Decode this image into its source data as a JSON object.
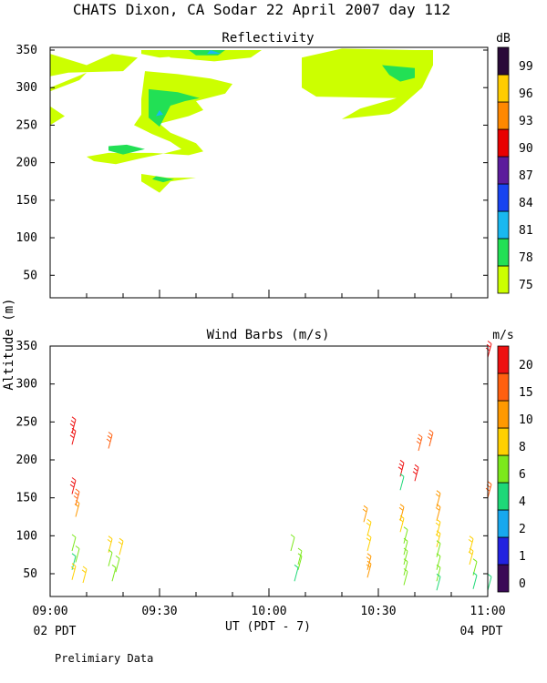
{
  "header": {
    "title": "CHATS Dixon, CA  Sodar  22 April 2007  day 112",
    "footnote": "Prelimiary Data",
    "ylabel": "Altitude (m)",
    "xlabel": "UT  (PDT - 7)",
    "time_left": "02 PDT",
    "time_right": "04 PDT"
  },
  "chart_data": [
    {
      "type": "heatmap",
      "title": "Reflectivity",
      "x": {
        "ticks": [
          "09:00",
          "09:30",
          "10:00",
          "10:30",
          "11:00"
        ],
        "range": [
          "09:00",
          "11:00"
        ]
      },
      "y": {
        "ticks": [
          50,
          100,
          150,
          200,
          250,
          300,
          350
        ],
        "range": [
          20,
          350
        ]
      },
      "colorbar": {
        "unit": "dB",
        "levels": [
          75,
          78,
          81,
          84,
          87,
          90,
          93,
          96,
          99
        ],
        "colors": [
          "#ccff00",
          "#22e055",
          "#19b8f0",
          "#1844f0",
          "#5c1c9c",
          "#e80000",
          "#ff8800",
          "#ffcc00",
          "#2a0a38"
        ]
      },
      "regions": [
        {
          "level": 75,
          "points": [
            [
              "09:00",
              345
            ],
            [
              "09:10",
              330
            ],
            [
              "09:17",
              345
            ],
            [
              "09:24",
              340
            ],
            [
              "09:20",
              322
            ],
            [
              "09:05",
              320
            ],
            [
              "09:00",
              315
            ]
          ]
        },
        {
          "level": 75,
          "points": [
            [
              "09:00",
              300
            ],
            [
              "09:10",
              320
            ],
            [
              "09:08",
              310
            ],
            [
              "09:00",
              295
            ]
          ]
        },
        {
          "level": 75,
          "points": [
            [
              "09:00",
              275
            ],
            [
              "09:04",
              262
            ],
            [
              "09:00",
              250
            ]
          ]
        },
        {
          "level": 75,
          "points": [
            [
              "09:25",
              350
            ],
            [
              "09:35",
              350
            ],
            [
              "09:35",
              342
            ],
            [
              "09:30",
              340
            ],
            [
              "09:25",
              345
            ]
          ]
        },
        {
          "level": 75,
          "points": [
            [
              "09:30",
              350
            ],
            [
              "09:58",
              350
            ],
            [
              "09:55",
              340
            ],
            [
              "09:45",
              335
            ],
            [
              "09:33",
              340
            ]
          ]
        },
        {
          "level": 75,
          "points": [
            [
              "09:26",
              322
            ],
            [
              "09:35",
              318
            ],
            [
              "09:44",
              312
            ],
            [
              "09:50",
              305
            ],
            [
              "09:48",
              292
            ],
            [
              "09:40",
              282
            ],
            [
              "09:42",
              270
            ],
            [
              "09:38",
              262
            ],
            [
              "09:30",
              252
            ],
            [
              "09:33",
              240
            ],
            [
              "09:40",
              226
            ],
            [
              "09:42",
              215
            ],
            [
              "09:38",
              210
            ],
            [
              "09:28",
              213
            ],
            [
              "09:16",
              213
            ],
            [
              "09:10",
              208
            ],
            [
              "09:12",
              202
            ],
            [
              "09:18",
              198
            ],
            [
              "09:25",
              206
            ],
            [
              "09:31",
              212
            ],
            [
              "09:36",
              218
            ],
            [
              "09:33",
              228
            ],
            [
              "09:28",
              238
            ],
            [
              "09:23",
              250
            ],
            [
              "09:25",
              264
            ],
            [
              "09:25",
              285
            ]
          ]
        },
        {
          "level": 75,
          "points": [
            [
              "09:25",
              185
            ],
            [
              "09:32",
              180
            ],
            [
              "09:40",
              180
            ],
            [
              "09:33",
              175
            ],
            [
              "09:30",
              160
            ],
            [
              "09:25",
              175
            ]
          ]
        },
        {
          "level": 75,
          "points": [
            [
              "10:09",
              340
            ],
            [
              "10:20",
              352
            ],
            [
              "10:40",
              350
            ],
            [
              "10:45",
              350
            ],
            [
              "10:45",
              330
            ],
            [
              "10:42",
              300
            ],
            [
              "10:35",
              270
            ],
            [
              "10:33",
              265
            ],
            [
              "10:20",
              258
            ],
            [
              "10:25",
              272
            ],
            [
              "10:35",
              286
            ],
            [
              "10:13",
              288
            ],
            [
              "10:09",
              300
            ]
          ]
        },
        {
          "level": 78,
          "points": [
            [
              "09:38",
              350
            ],
            [
              "09:48",
              350
            ],
            [
              "09:46",
              343
            ],
            [
              "09:40",
              343
            ]
          ]
        },
        {
          "level": 78,
          "points": [
            [
              "09:27",
              298
            ],
            [
              "09:35",
              294
            ],
            [
              "09:41",
              286
            ],
            [
              "09:37",
              282
            ],
            [
              "09:33",
              276
            ],
            [
              "09:30",
              248
            ],
            [
              "09:27",
              260
            ]
          ]
        },
        {
          "level": 78,
          "points": [
            [
              "09:16",
              222
            ],
            [
              "09:21",
              224
            ],
            [
              "09:26",
              218
            ],
            [
              "09:20",
              211
            ],
            [
              "09:16",
              216
            ]
          ]
        },
        {
          "level": 78,
          "points": [
            [
              "09:29",
              182
            ],
            [
              "09:34",
              178
            ],
            [
              "09:31",
              174
            ],
            [
              "09:28",
              178
            ]
          ]
        },
        {
          "level": 78,
          "points": [
            [
              "10:31",
              330
            ],
            [
              "10:40",
              326
            ],
            [
              "10:40",
              313
            ],
            [
              "10:36",
              308
            ],
            [
              "10:33",
              317
            ]
          ]
        },
        {
          "level": 81,
          "points": [
            [
              "09:44",
              350
            ],
            [
              "09:47",
              345
            ],
            [
              "09:43",
              345
            ]
          ]
        },
        {
          "level": 81,
          "points": [
            [
              "09:30",
              270
            ],
            [
              "09:31",
              264
            ],
            [
              "09:29",
              262
            ]
          ]
        }
      ]
    },
    {
      "type": "scatter",
      "title": "Wind Barbs (m/s)",
      "x": {
        "ticks": [
          "09:00",
          "09:30",
          "10:00",
          "10:30",
          "11:00"
        ],
        "range": [
          "09:00",
          "11:00"
        ]
      },
      "y": {
        "ticks": [
          50,
          100,
          150,
          200,
          250,
          300,
          350
        ],
        "range": [
          20,
          350
        ]
      },
      "colorbar": {
        "unit": "m/s",
        "levels": [
          0,
          1,
          2,
          4,
          6,
          8,
          10,
          15,
          20
        ],
        "colors": [
          "#3a0a56",
          "#2222e0",
          "#18a8ee",
          "#1ed878",
          "#7ce81c",
          "#ffd000",
          "#ff9900",
          "#ff6010",
          "#ee1111"
        ]
      },
      "barbs": [
        {
          "time": "09:06",
          "alt": 235,
          "level": 20
        },
        {
          "time": "09:06",
          "alt": 220,
          "level": 20
        },
        {
          "time": "09:06",
          "alt": 155,
          "level": 20
        },
        {
          "time": "09:07",
          "alt": 140,
          "level": 15
        },
        {
          "time": "09:07",
          "alt": 125,
          "level": 10
        },
        {
          "time": "09:06",
          "alt": 80,
          "level": 6
        },
        {
          "time": "09:07",
          "alt": 65,
          "level": 6
        },
        {
          "time": "09:06",
          "alt": 55,
          "level": 4
        },
        {
          "time": "09:06",
          "alt": 42,
          "level": 8
        },
        {
          "time": "09:09",
          "alt": 38,
          "level": 8
        },
        {
          "time": "09:16",
          "alt": 215,
          "level": 15
        },
        {
          "time": "09:16",
          "alt": 78,
          "level": 8
        },
        {
          "time": "09:19",
          "alt": 75,
          "level": 8
        },
        {
          "time": "09:16",
          "alt": 60,
          "level": 6
        },
        {
          "time": "09:18",
          "alt": 52,
          "level": 6
        },
        {
          "time": "09:17",
          "alt": 40,
          "level": 6
        },
        {
          "time": "10:06",
          "alt": 80,
          "level": 6
        },
        {
          "time": "10:08",
          "alt": 62,
          "level": 6
        },
        {
          "time": "10:08",
          "alt": 55,
          "level": 6
        },
        {
          "time": "10:07",
          "alt": 40,
          "level": 4
        },
        {
          "time": "10:26",
          "alt": 118,
          "level": 10
        },
        {
          "time": "10:27",
          "alt": 100,
          "level": 8
        },
        {
          "time": "10:27",
          "alt": 80,
          "level": 8
        },
        {
          "time": "10:27",
          "alt": 55,
          "level": 10
        },
        {
          "time": "10:27",
          "alt": 45,
          "level": 10
        },
        {
          "time": "10:36",
          "alt": 178,
          "level": 20
        },
        {
          "time": "10:40",
          "alt": 172,
          "level": 20
        },
        {
          "time": "10:36",
          "alt": 160,
          "level": 4
        },
        {
          "time": "10:36",
          "alt": 120,
          "level": 10
        },
        {
          "time": "10:36",
          "alt": 105,
          "level": 8
        },
        {
          "time": "10:37",
          "alt": 90,
          "level": 6
        },
        {
          "time": "10:37",
          "alt": 75,
          "level": 6
        },
        {
          "time": "10:37",
          "alt": 62,
          "level": 6
        },
        {
          "time": "10:37",
          "alt": 48,
          "level": 6
        },
        {
          "time": "10:37",
          "alt": 35,
          "level": 6
        },
        {
          "time": "10:41",
          "alt": 212,
          "level": 15
        },
        {
          "time": "10:44",
          "alt": 218,
          "level": 15
        },
        {
          "time": "10:46",
          "alt": 138,
          "level": 10
        },
        {
          "time": "10:46",
          "alt": 120,
          "level": 10
        },
        {
          "time": "10:46",
          "alt": 100,
          "level": 8
        },
        {
          "time": "10:46",
          "alt": 85,
          "level": 8
        },
        {
          "time": "10:46",
          "alt": 72,
          "level": 6
        },
        {
          "time": "10:46",
          "alt": 55,
          "level": 6
        },
        {
          "time": "10:46",
          "alt": 40,
          "level": 6
        },
        {
          "time": "10:46",
          "alt": 28,
          "level": 4
        },
        {
          "time": "10:55",
          "alt": 78,
          "level": 8
        },
        {
          "time": "10:55",
          "alt": 62,
          "level": 8
        },
        {
          "time": "10:56",
          "alt": 48,
          "level": 6
        },
        {
          "time": "10:56",
          "alt": 30,
          "level": 4
        },
        {
          "time": "11:00",
          "alt": 335,
          "level": 20
        },
        {
          "time": "11:00",
          "alt": 150,
          "level": 15
        },
        {
          "time": "11:00",
          "alt": 28,
          "level": 4
        }
      ]
    }
  ]
}
